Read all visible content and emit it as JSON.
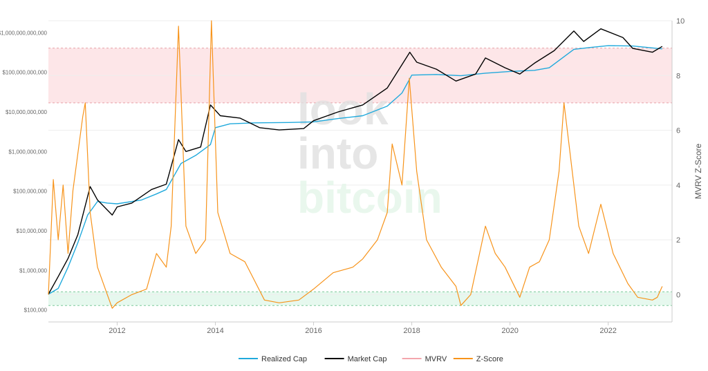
{
  "chart_data": {
    "type": "line",
    "title": "",
    "ylabel_left": "",
    "ylabel_right": "MVRV Z-Score",
    "y_left_scale": "log",
    "y_left_range": [
      50000,
      2000000000000
    ],
    "y_left_ticks": [
      {
        "value": 100000,
        "label": "$100,000"
      },
      {
        "value": 1000000,
        "label": "$1,000,000"
      },
      {
        "value": 10000000,
        "label": "$10,000,000"
      },
      {
        "value": 100000000,
        "label": "$100,000,000"
      },
      {
        "value": 1000000000,
        "label": "$1,000,000,000"
      },
      {
        "value": 10000000000,
        "label": "$10,000,000,000"
      },
      {
        "value": 100000000000,
        "label": "$100,000,000,000"
      },
      {
        "value": 1000000000000,
        "label": "$1,000,000,000,000"
      }
    ],
    "y_right_range": [
      -1,
      10
    ],
    "y_right_ticks": [
      "10",
      "8",
      "6",
      "4",
      "2",
      "0"
    ],
    "x_range": [
      2010.6,
      2023.3
    ],
    "x_ticks": [
      "2012",
      "2014",
      "2016",
      "2018",
      "2020",
      "2022"
    ],
    "bands": [
      {
        "name": "overvalued",
        "axis": "right",
        "from": 7,
        "to": 9,
        "color": "#fde6e8"
      },
      {
        "name": "undervalued",
        "axis": "right",
        "from": -0.4,
        "to": 0.1,
        "color": "#e6f8ee"
      }
    ],
    "legend_position": "bottom",
    "watermark": [
      "look",
      "into",
      "bitcoin"
    ],
    "series": [
      {
        "name": "Realized Cap",
        "axis": "left",
        "color": "#1fa9dc",
        "points": [
          [
            2010.6,
            250000
          ],
          [
            2010.8,
            350000
          ],
          [
            2011.0,
            1200000
          ],
          [
            2011.2,
            5000000
          ],
          [
            2011.4,
            25000000
          ],
          [
            2011.6,
            55000000
          ],
          [
            2011.8,
            50000000
          ],
          [
            2012.0,
            48000000
          ],
          [
            2012.5,
            60000000
          ],
          [
            2012.8,
            85000000
          ],
          [
            2013.0,
            110000000
          ],
          [
            2013.3,
            500000000
          ],
          [
            2013.6,
            800000000
          ],
          [
            2013.9,
            1500000000
          ],
          [
            2014.0,
            4000000000
          ],
          [
            2014.3,
            5000000000
          ],
          [
            2014.8,
            5300000000
          ],
          [
            2015.5,
            5400000000
          ],
          [
            2016.0,
            5600000000
          ],
          [
            2016.5,
            6800000000
          ],
          [
            2017.0,
            8000000000
          ],
          [
            2017.5,
            14000000000
          ],
          [
            2017.8,
            30000000000
          ],
          [
            2018.0,
            85000000000
          ],
          [
            2018.5,
            88000000000
          ],
          [
            2019.0,
            82000000000
          ],
          [
            2019.5,
            95000000000
          ],
          [
            2020.0,
            105000000000
          ],
          [
            2020.5,
            112000000000
          ],
          [
            2020.8,
            130000000000
          ],
          [
            2021.0,
            200000000000
          ],
          [
            2021.3,
            380000000000
          ],
          [
            2021.6,
            420000000000
          ],
          [
            2022.0,
            470000000000
          ],
          [
            2022.5,
            460000000000
          ],
          [
            2023.0,
            400000000000
          ],
          [
            2023.1,
            390000000000
          ]
        ]
      },
      {
        "name": "Market Cap",
        "axis": "left",
        "color": "#000000",
        "points": [
          [
            2010.6,
            250000
          ],
          [
            2010.8,
            700000
          ],
          [
            2011.0,
            2000000
          ],
          [
            2011.2,
            8000000
          ],
          [
            2011.45,
            130000000
          ],
          [
            2011.6,
            60000000
          ],
          [
            2011.9,
            25000000
          ],
          [
            2012.0,
            40000000
          ],
          [
            2012.3,
            50000000
          ],
          [
            2012.7,
            110000000
          ],
          [
            2013.0,
            150000000
          ],
          [
            2013.25,
            2000000000
          ],
          [
            2013.4,
            1000000000
          ],
          [
            2013.7,
            1300000000
          ],
          [
            2013.9,
            15000000000
          ],
          [
            2014.1,
            8000000000
          ],
          [
            2014.5,
            7000000000
          ],
          [
            2014.9,
            4000000000
          ],
          [
            2015.3,
            3500000000
          ],
          [
            2015.8,
            3800000000
          ],
          [
            2016.0,
            6000000000
          ],
          [
            2016.5,
            10000000000
          ],
          [
            2017.0,
            15000000000
          ],
          [
            2017.5,
            40000000000
          ],
          [
            2017.96,
            320000000000
          ],
          [
            2018.1,
            180000000000
          ],
          [
            2018.5,
            120000000000
          ],
          [
            2018.9,
            60000000000
          ],
          [
            2019.3,
            90000000000
          ],
          [
            2019.5,
            230000000000
          ],
          [
            2019.9,
            130000000000
          ],
          [
            2020.2,
            90000000000
          ],
          [
            2020.5,
            170000000000
          ],
          [
            2020.9,
            350000000000
          ],
          [
            2021.3,
            1100000000000
          ],
          [
            2021.5,
            600000000000
          ],
          [
            2021.85,
            1250000000000
          ],
          [
            2022.3,
            750000000000
          ],
          [
            2022.5,
            400000000000
          ],
          [
            2022.9,
            320000000000
          ],
          [
            2023.1,
            450000000000
          ]
        ]
      },
      {
        "name": "MVRV",
        "axis": "left",
        "color": "#f4a6ad",
        "points": []
      },
      {
        "name": "Z-Score",
        "axis": "right",
        "color": "#f7931a",
        "points": [
          [
            2010.6,
            0.0
          ],
          [
            2010.7,
            4.2
          ],
          [
            2010.8,
            2.0
          ],
          [
            2010.9,
            4.0
          ],
          [
            2011.0,
            1.5
          ],
          [
            2011.1,
            3.8
          ],
          [
            2011.3,
            6.5
          ],
          [
            2011.35,
            7.0
          ],
          [
            2011.45,
            3.0
          ],
          [
            2011.6,
            1.0
          ],
          [
            2011.8,
            0.0
          ],
          [
            2011.9,
            -0.5
          ],
          [
            2012.0,
            -0.3
          ],
          [
            2012.3,
            0.0
          ],
          [
            2012.6,
            0.2
          ],
          [
            2012.8,
            1.5
          ],
          [
            2013.0,
            1.0
          ],
          [
            2013.1,
            2.5
          ],
          [
            2013.25,
            9.8
          ],
          [
            2013.4,
            2.5
          ],
          [
            2013.6,
            1.5
          ],
          [
            2013.8,
            2.0
          ],
          [
            2013.92,
            10.0
          ],
          [
            2014.05,
            3.0
          ],
          [
            2014.3,
            1.5
          ],
          [
            2014.6,
            1.2
          ],
          [
            2014.8,
            0.5
          ],
          [
            2015.0,
            -0.2
          ],
          [
            2015.3,
            -0.3
          ],
          [
            2015.7,
            -0.2
          ],
          [
            2016.0,
            0.2
          ],
          [
            2016.4,
            0.8
          ],
          [
            2016.8,
            1.0
          ],
          [
            2017.0,
            1.3
          ],
          [
            2017.3,
            2.0
          ],
          [
            2017.5,
            3.0
          ],
          [
            2017.6,
            5.5
          ],
          [
            2017.8,
            4.0
          ],
          [
            2017.95,
            7.9
          ],
          [
            2018.1,
            4.5
          ],
          [
            2018.3,
            2.0
          ],
          [
            2018.6,
            1.0
          ],
          [
            2018.9,
            0.3
          ],
          [
            2019.0,
            -0.4
          ],
          [
            2019.2,
            0.0
          ],
          [
            2019.5,
            2.5
          ],
          [
            2019.7,
            1.5
          ],
          [
            2019.9,
            1.0
          ],
          [
            2020.2,
            -0.1
          ],
          [
            2020.4,
            1.0
          ],
          [
            2020.6,
            1.2
          ],
          [
            2020.8,
            2.0
          ],
          [
            2021.0,
            4.5
          ],
          [
            2021.1,
            7.0
          ],
          [
            2021.2,
            5.5
          ],
          [
            2021.4,
            2.5
          ],
          [
            2021.6,
            1.5
          ],
          [
            2021.85,
            3.3
          ],
          [
            2022.1,
            1.5
          ],
          [
            2022.4,
            0.4
          ],
          [
            2022.6,
            -0.1
          ],
          [
            2022.9,
            -0.2
          ],
          [
            2023.0,
            -0.1
          ],
          [
            2023.1,
            0.3
          ]
        ]
      }
    ]
  }
}
